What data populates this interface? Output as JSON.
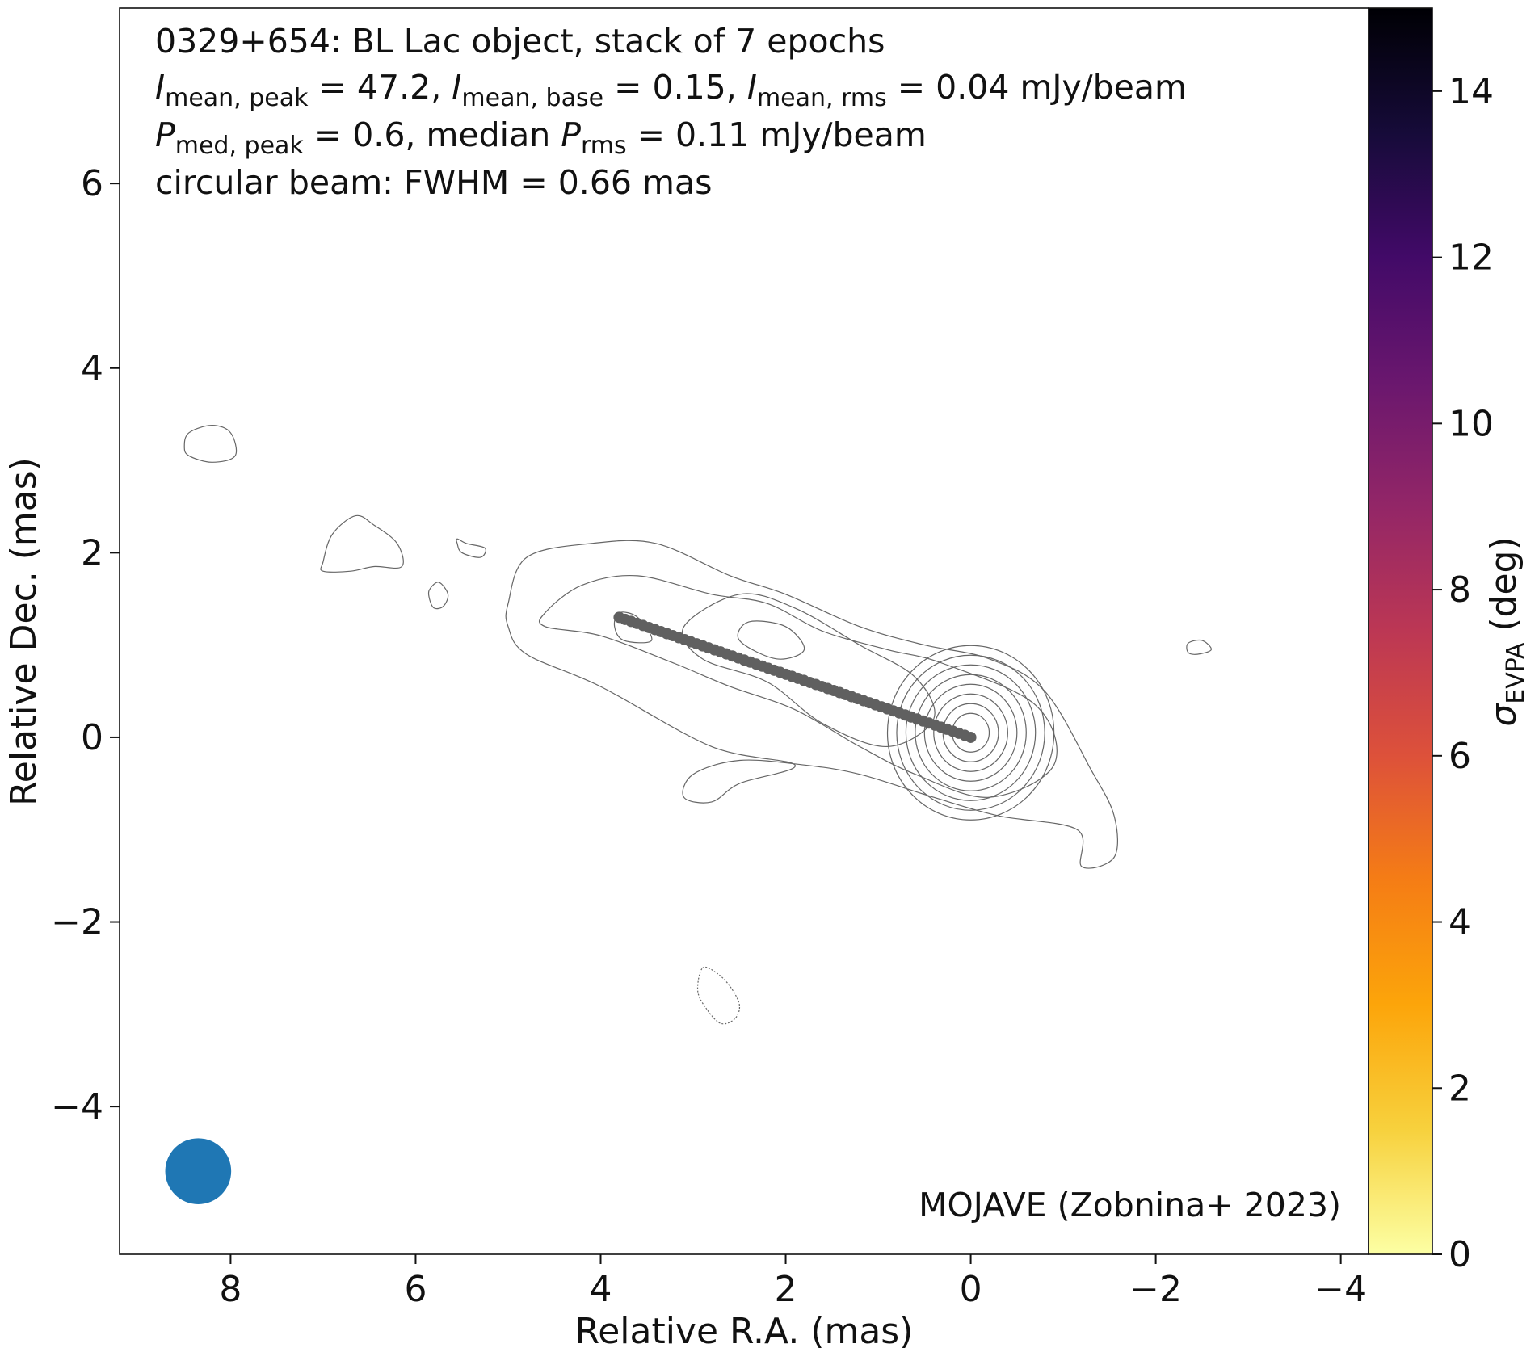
{
  "annotations": {
    "line1": "0329+654: BL Lac object, stack of 7 epochs",
    "line2": {
      "i1_sym": "I",
      "i1_sub": "mean, peak",
      "i1_val": " = 47.2, ",
      "i2_sym": "I",
      "i2_sub": "mean, base",
      "i2_val": " = 0.15, ",
      "i3_sym": "I",
      "i3_sub": "mean, rms",
      "i3_val": " = 0.04 mJy/beam"
    },
    "line3": {
      "p1_sym": "P",
      "p1_sub": "med, peak",
      "p1_val": " = 0.6, median ",
      "p2_sym": "P",
      "p2_sub": "rms",
      "p2_val": " = 0.11 mJy/beam"
    },
    "line4": "circular beam: FWHM = 0.66 mas",
    "credit": "MOJAVE (Zobnina+ 2023)"
  },
  "chart_data": {
    "type": "scatter",
    "xlabel": "Relative R.A. (mas)",
    "ylabel": "Relative Dec. (mas)",
    "xlim": [
      9.2,
      -4.3
    ],
    "ylim": [
      -5.6,
      7.9
    ],
    "x_ticks": [
      8,
      6,
      4,
      2,
      0,
      -2,
      -4
    ],
    "y_ticks": [
      -4,
      -2,
      0,
      2,
      4,
      6
    ],
    "x_tick_labels": [
      "8",
      "6",
      "4",
      "2",
      "0",
      "−2",
      "−4"
    ],
    "y_tick_labels": [
      "−4",
      "−2",
      "0",
      "2",
      "4",
      "6"
    ],
    "ridgeline": {
      "color": "#606060",
      "start": [
        3.8,
        1.3
      ],
      "end": [
        0.0,
        0.0
      ],
      "n_points": 60
    },
    "contours": {
      "color": "#666666",
      "core_center": [
        0.0,
        0.05
      ],
      "core_radii": [
        0.2,
        0.3,
        0.4,
        0.5,
        0.6,
        0.7,
        0.8,
        0.9
      ],
      "jet_outer": [
        [
          5.0,
          1.2
        ],
        [
          5.0,
          1.45
        ],
        [
          4.8,
          1.95
        ],
        [
          4.1,
          2.1
        ],
        [
          3.4,
          2.1
        ],
        [
          2.6,
          1.75
        ],
        [
          2.0,
          1.55
        ],
        [
          1.2,
          1.2
        ],
        [
          0.5,
          1.0
        ],
        [
          -0.2,
          0.85
        ],
        [
          -0.8,
          0.5
        ],
        [
          -1.3,
          -0.35
        ],
        [
          -1.55,
          -0.85
        ],
        [
          -1.55,
          -1.3
        ],
        [
          -1.2,
          -1.4
        ],
        [
          -1.15,
          -1.0
        ],
        [
          -0.3,
          -0.85
        ],
        [
          0.4,
          -0.65
        ],
        [
          1.2,
          -0.4
        ],
        [
          1.8,
          -0.3
        ],
        [
          2.5,
          -0.25
        ],
        [
          3.0,
          -0.4
        ],
        [
          3.1,
          -0.65
        ],
        [
          2.8,
          -0.7
        ],
        [
          2.5,
          -0.5
        ],
        [
          1.9,
          -0.3
        ],
        [
          2.8,
          -0.1
        ],
        [
          4.0,
          0.55
        ],
        [
          4.8,
          0.9
        ]
      ],
      "jet_mid": [
        [
          4.6,
          1.35
        ],
        [
          4.2,
          1.65
        ],
        [
          3.6,
          1.75
        ],
        [
          2.8,
          1.55
        ],
        [
          2.2,
          1.45
        ],
        [
          1.6,
          1.15
        ],
        [
          0.9,
          0.95
        ],
        [
          0.3,
          0.8
        ],
        [
          -0.7,
          0.35
        ],
        [
          -0.9,
          -0.3
        ],
        [
          -0.2,
          -0.65
        ],
        [
          0.6,
          -0.4
        ],
        [
          1.2,
          -0.1
        ],
        [
          1.9,
          0.3
        ],
        [
          2.6,
          0.55
        ],
        [
          3.2,
          0.8
        ],
        [
          4.0,
          1.1
        ],
        [
          4.6,
          1.2
        ]
      ],
      "jet_inner": [
        [
          3.1,
          1.2
        ],
        [
          2.5,
          1.55
        ],
        [
          1.9,
          1.4
        ],
        [
          1.2,
          1.0
        ],
        [
          0.6,
          0.65
        ],
        [
          0.4,
          0.2
        ],
        [
          0.9,
          -0.1
        ],
        [
          1.6,
          0.15
        ],
        [
          2.2,
          0.6
        ],
        [
          2.9,
          0.85
        ]
      ],
      "knot": [
        [
          2.4,
          1.25
        ],
        [
          2.0,
          1.2
        ],
        [
          1.8,
          0.95
        ],
        [
          2.1,
          0.85
        ],
        [
          2.5,
          1.05
        ]
      ],
      "knot_small": [
        [
          3.8,
          1.35
        ],
        [
          3.6,
          1.3
        ],
        [
          3.45,
          1.05
        ],
        [
          3.75,
          1.05
        ],
        [
          3.85,
          1.2
        ]
      ],
      "blobs": [
        [
          [
            8.5,
            3.15
          ],
          [
            8.45,
            3.3
          ],
          [
            8.2,
            3.38
          ],
          [
            8.0,
            3.3
          ],
          [
            7.95,
            3.05
          ],
          [
            8.2,
            2.98
          ],
          [
            8.45,
            3.05
          ]
        ],
        [
          [
            7.0,
            1.9
          ],
          [
            6.9,
            2.2
          ],
          [
            6.65,
            2.4
          ],
          [
            6.45,
            2.3
          ],
          [
            6.2,
            2.1
          ],
          [
            6.15,
            1.85
          ],
          [
            6.45,
            1.85
          ],
          [
            6.7,
            1.8
          ],
          [
            7.0,
            1.8
          ]
        ],
        [
          [
            5.55,
            2.15
          ],
          [
            5.45,
            2.1
          ],
          [
            5.25,
            2.05
          ],
          [
            5.3,
            1.95
          ],
          [
            5.5,
            2.0
          ],
          [
            5.55,
            2.1
          ]
        ],
        [
          [
            5.85,
            1.6
          ],
          [
            5.75,
            1.68
          ],
          [
            5.65,
            1.55
          ],
          [
            5.7,
            1.42
          ],
          [
            5.8,
            1.4
          ],
          [
            5.85,
            1.5
          ]
        ],
        [
          [
            -2.35,
            1.02
          ],
          [
            -2.5,
            1.05
          ],
          [
            -2.6,
            0.95
          ],
          [
            -2.45,
            0.9
          ],
          [
            -2.35,
            0.92
          ]
        ]
      ],
      "negative_blob": [
        [
          2.9,
          -2.5
        ],
        [
          2.75,
          -2.55
        ],
        [
          2.6,
          -2.7
        ],
        [
          2.5,
          -2.9
        ],
        [
          2.55,
          -3.05
        ],
        [
          2.7,
          -3.1
        ],
        [
          2.85,
          -2.95
        ],
        [
          2.95,
          -2.75
        ]
      ]
    },
    "beam": {
      "center": [
        8.35,
        -4.7
      ],
      "fwhm": 0.66,
      "color": "#1f77b4"
    },
    "colorbar": {
      "label_sym": "σ",
      "label_sub": "EVPA",
      "label_unit": " (deg)",
      "ticks": [
        0,
        2,
        4,
        6,
        8,
        10,
        12,
        14
      ],
      "range": [
        0,
        15
      ],
      "colormap": "inferno_r",
      "stops": [
        "#fcffa4",
        "#f7d13d",
        "#fca50a",
        "#f57d15",
        "#dd513a",
        "#bc3754",
        "#932667",
        "#6a176e",
        "#420a68",
        "#160b39",
        "#000004"
      ]
    }
  }
}
